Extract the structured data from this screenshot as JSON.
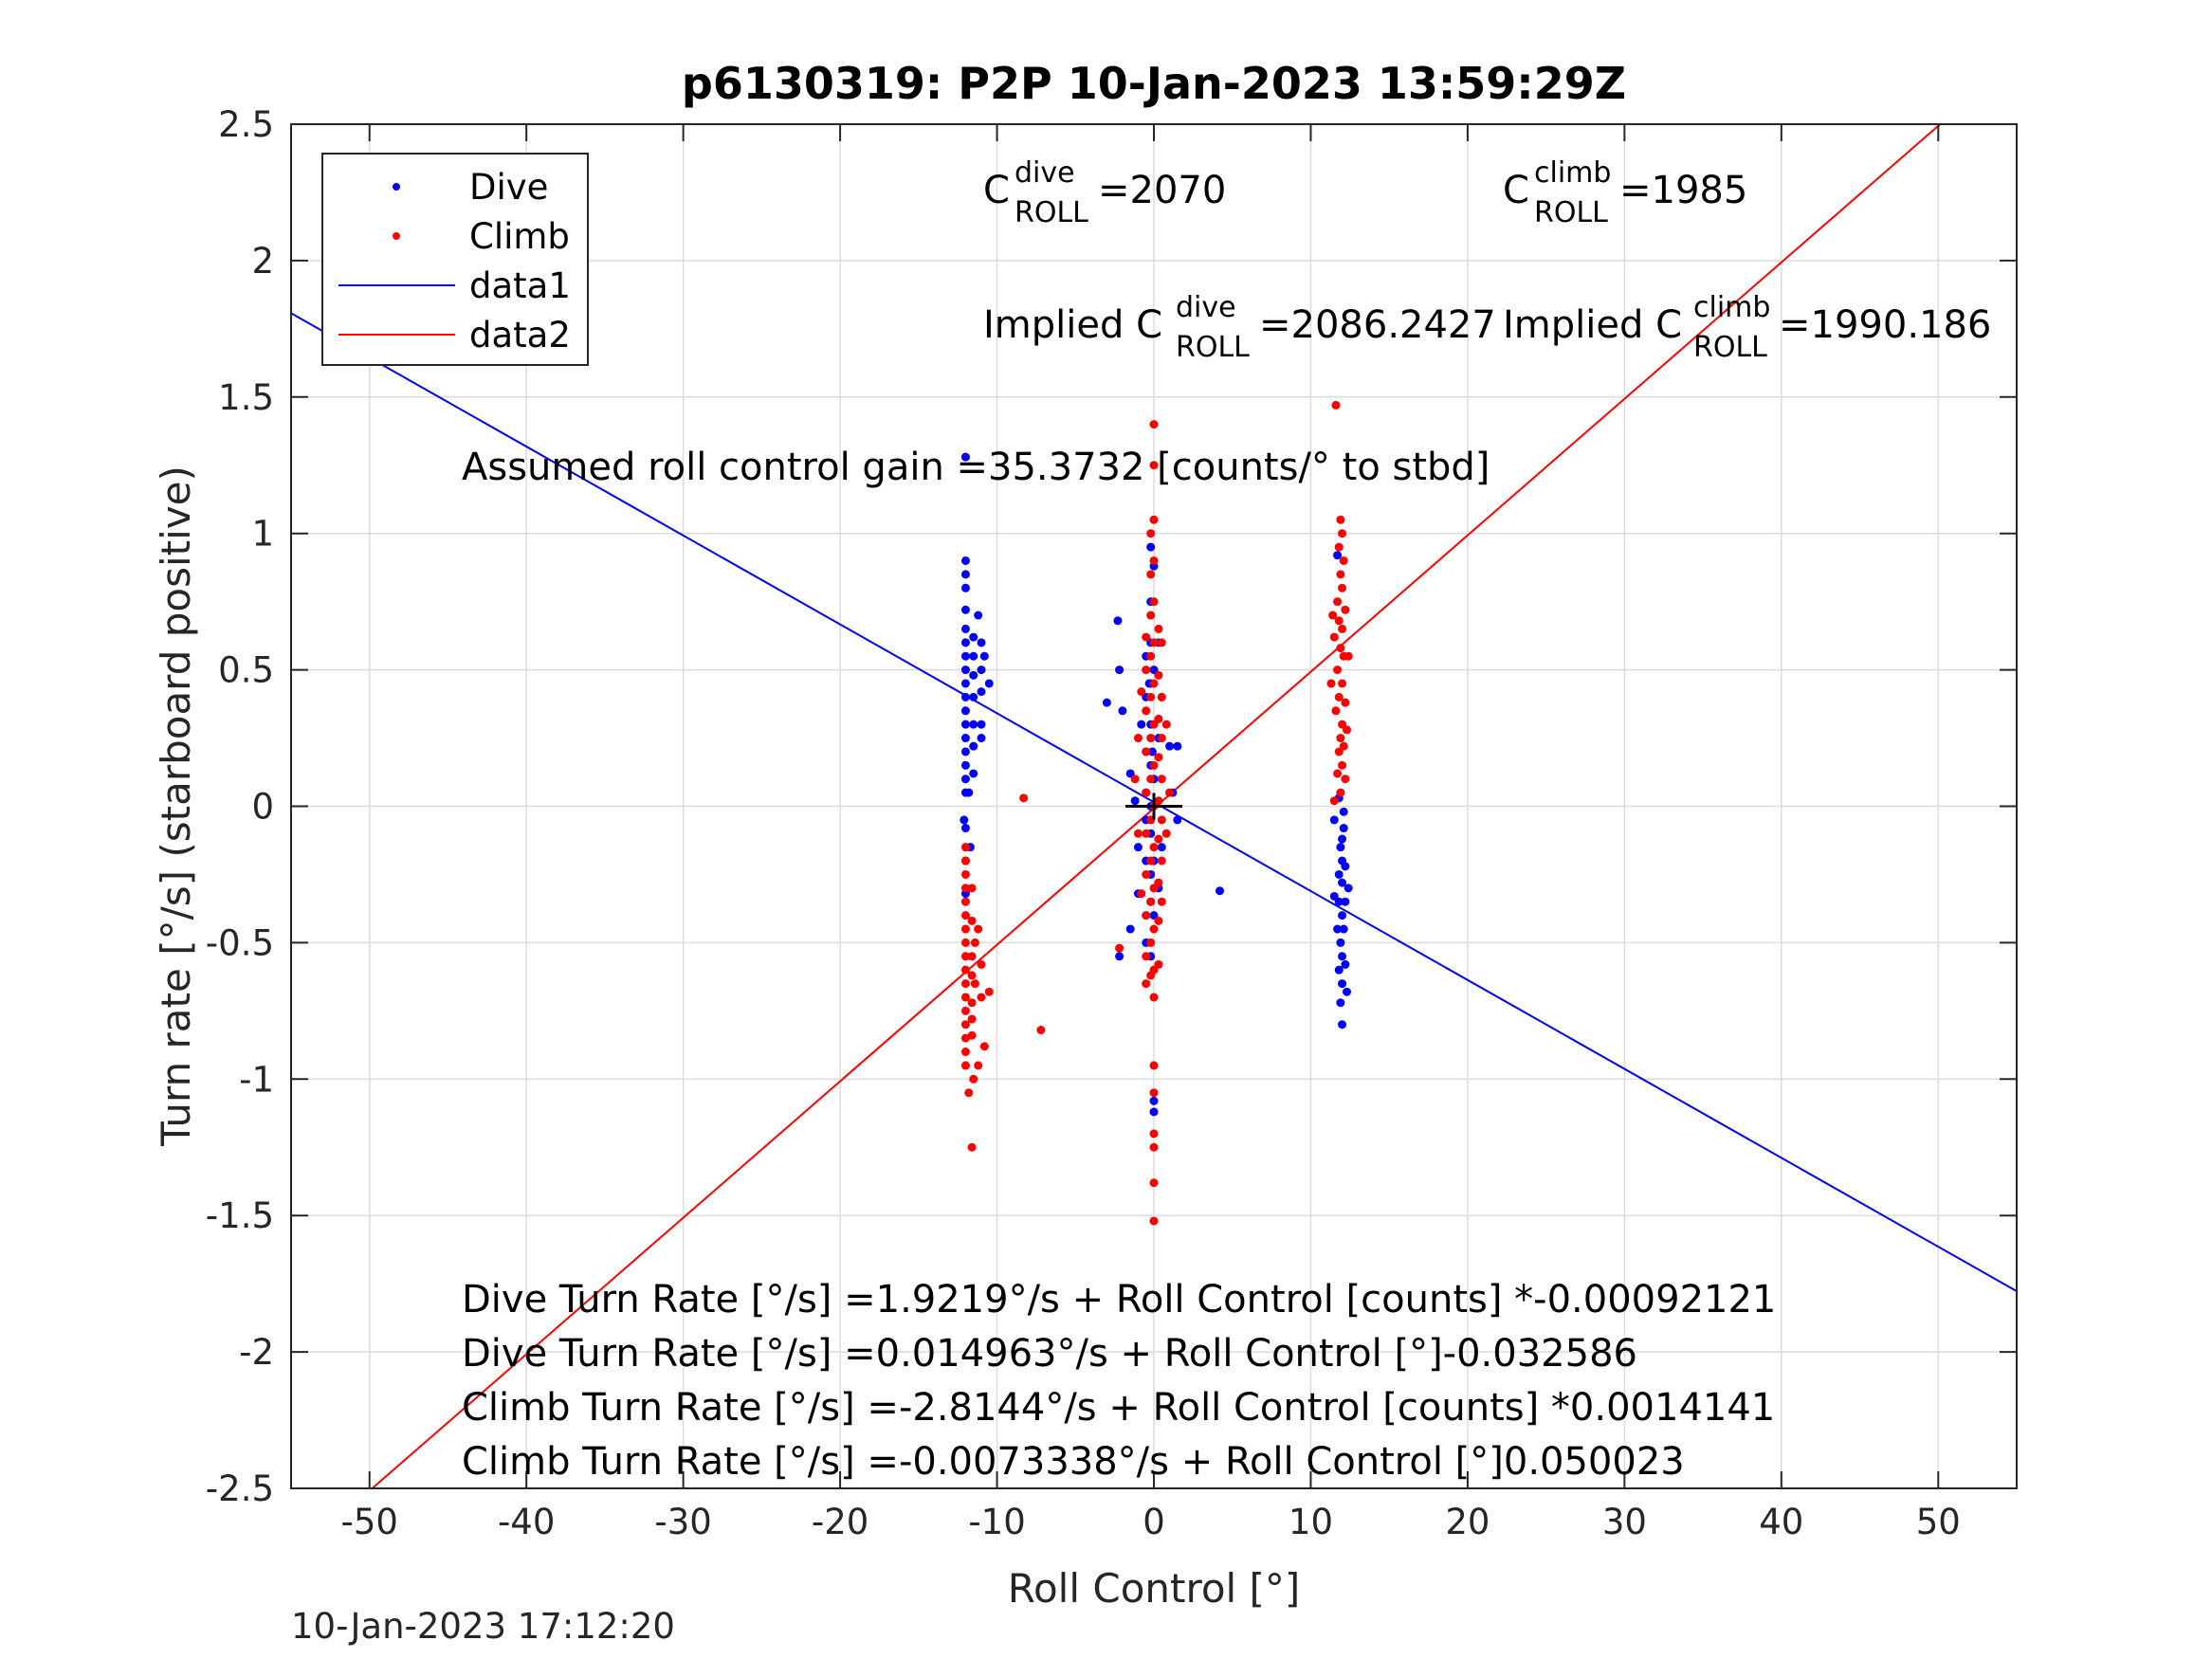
{
  "chart_data": {
    "type": "scatter",
    "title": "p6130319: P2P 10-Jan-2023 13:59:29Z",
    "xlabel": "Roll Control [°]",
    "ylabel": "Turn rate [°/s] (starboard positive)",
    "xlim": [
      -55,
      55
    ],
    "ylim": [
      -2.5,
      2.5
    ],
    "xticks": [
      -50,
      -40,
      -30,
      -20,
      -10,
      0,
      10,
      20,
      30,
      40,
      50
    ],
    "xtick_labels": [
      "-50",
      "-40",
      "-30",
      "-20",
      "-10",
      "0",
      "10",
      "20",
      "30",
      "40",
      "50"
    ],
    "yticks": [
      -2.5,
      -2,
      -1.5,
      -1,
      -0.5,
      0,
      0.5,
      1,
      1.5,
      2,
      2.5
    ],
    "ytick_labels": [
      "-2.5",
      "-2",
      "-1.5",
      "-1",
      "-0.5",
      "0",
      "0.5",
      "1",
      "1.5",
      "2",
      "2.5"
    ],
    "grid": true,
    "legend_position": "top-left",
    "timestamp": "10-Jan-2023 17:12:20",
    "colors": {
      "dive": "#0000ff",
      "climb": "#ff0000",
      "axes": "#262626",
      "grid": "#dcdcdc"
    },
    "series": [
      {
        "name": "Dive",
        "kind": "scatter",
        "color": "#0000ff",
        "points": [
          [
            -12,
            0.9
          ],
          [
            -12,
            0.85
          ],
          [
            -12,
            0.8
          ],
          [
            -12,
            0.72
          ],
          [
            -12,
            0.65
          ],
          [
            -12,
            0.6
          ],
          [
            -12,
            0.55
          ],
          [
            -12,
            0.5
          ],
          [
            -12,
            0.45
          ],
          [
            -12,
            0.4
          ],
          [
            -12,
            0.35
          ],
          [
            -12,
            0.3
          ],
          [
            -12,
            0.25
          ],
          [
            -12,
            0.2
          ],
          [
            -12,
            0.15
          ],
          [
            -12,
            0.1
          ],
          [
            -12,
            0.05
          ],
          [
            -12,
            -0.08
          ],
          [
            -12,
            -0.2
          ],
          [
            -12,
            -0.32
          ],
          [
            -12,
            1.28
          ],
          [
            -11.5,
            0.62
          ],
          [
            -11.5,
            0.55
          ],
          [
            -11.5,
            0.48
          ],
          [
            -11.5,
            0.4
          ],
          [
            -11.5,
            0.3
          ],
          [
            -11.5,
            0.22
          ],
          [
            -11.5,
            0.12
          ],
          [
            -11.2,
            0.7
          ],
          [
            -11,
            0.6
          ],
          [
            -11,
            0.5
          ],
          [
            -11,
            0.42
          ],
          [
            -11,
            0.3
          ],
          [
            -11,
            0.25
          ],
          [
            -10.5,
            0.45
          ],
          [
            -10.8,
            0.55
          ],
          [
            -11.8,
            0.05
          ],
          [
            -12.1,
            -0.05
          ],
          [
            -11.7,
            -0.15
          ],
          [
            -2.3,
            0.68
          ],
          [
            -2.2,
            0.5
          ],
          [
            -2,
            0.35
          ],
          [
            -3,
            0.38
          ],
          [
            -1.5,
            0.12
          ],
          [
            -1.2,
            0.02
          ],
          [
            -1,
            -0.15
          ],
          [
            -1,
            -0.32
          ],
          [
            -1.5,
            -0.45
          ],
          [
            -2.2,
            -0.55
          ],
          [
            -0.8,
            0.3
          ],
          [
            -0.5,
            0.55
          ],
          [
            -0.5,
            0.4
          ],
          [
            -0.5,
            0.2
          ],
          [
            -0.5,
            0.05
          ],
          [
            -0.5,
            -0.05
          ],
          [
            -0.5,
            -0.2
          ],
          [
            -0.5,
            -0.4
          ],
          [
            -0.5,
            -0.5
          ],
          [
            -0.2,
            0.95
          ],
          [
            -0.2,
            0.75
          ],
          [
            -0.2,
            0.6
          ],
          [
            -0.2,
            0.45
          ],
          [
            -0.2,
            0.3
          ],
          [
            -0.2,
            0.15
          ],
          [
            -0.2,
            0
          ],
          [
            -0.2,
            -0.1
          ],
          [
            -0.2,
            -0.25
          ],
          [
            -0.2,
            -0.35
          ],
          [
            -0.2,
            -0.55
          ],
          [
            0,
            0.88
          ],
          [
            0,
            0.5
          ],
          [
            0,
            0.1
          ],
          [
            0,
            -0.2
          ],
          [
            0,
            -0.4
          ],
          [
            0,
            -1.08
          ],
          [
            0,
            -1.12
          ],
          [
            0.3,
            0.6
          ],
          [
            0.3,
            0.25
          ],
          [
            0.3,
            -0.3
          ],
          [
            0.5,
            0.4
          ],
          [
            0.5,
            -0.15
          ],
          [
            1,
            0.22
          ],
          [
            1.2,
            0.05
          ],
          [
            1.5,
            0.22
          ],
          [
            1.5,
            -0.05
          ],
          [
            4.2,
            -0.31
          ],
          [
            -0.3,
            0.45
          ],
          [
            -0.1,
            0.2
          ],
          [
            11.7,
            0.92
          ],
          [
            11.8,
            0.03
          ],
          [
            11.5,
            -0.05
          ],
          [
            12.1,
            -0.08
          ],
          [
            12,
            -0.12
          ],
          [
            11.9,
            -0.15
          ],
          [
            12,
            -0.2
          ],
          [
            12.2,
            -0.22
          ],
          [
            11.8,
            -0.25
          ],
          [
            12,
            -0.28
          ],
          [
            11.5,
            -0.33
          ],
          [
            11.8,
            -0.35
          ],
          [
            12.2,
            -0.35
          ],
          [
            12,
            -0.4
          ],
          [
            11.7,
            -0.45
          ],
          [
            12.1,
            -0.45
          ],
          [
            11.9,
            -0.5
          ],
          [
            12,
            -0.55
          ],
          [
            12.2,
            -0.58
          ],
          [
            11.8,
            -0.6
          ],
          [
            12,
            -0.65
          ],
          [
            12.3,
            -0.68
          ],
          [
            11.9,
            -0.72
          ],
          [
            12,
            -0.8
          ],
          [
            12.4,
            -0.3
          ],
          [
            12.1,
            -0.02
          ]
        ]
      },
      {
        "name": "Climb",
        "kind": "scatter",
        "color": "#ff0000",
        "points": [
          [
            -12,
            -0.15
          ],
          [
            -12,
            -0.2
          ],
          [
            -12,
            -0.25
          ],
          [
            -12,
            -0.3
          ],
          [
            -12,
            -0.35
          ],
          [
            -12,
            -0.4
          ],
          [
            -12,
            -0.45
          ],
          [
            -12,
            -0.5
          ],
          [
            -12,
            -0.55
          ],
          [
            -12,
            -0.6
          ],
          [
            -12,
            -0.65
          ],
          [
            -12,
            -0.7
          ],
          [
            -12,
            -0.75
          ],
          [
            -12,
            -0.8
          ],
          [
            -12,
            -0.85
          ],
          [
            -12,
            -0.9
          ],
          [
            -12,
            -0.95
          ],
          [
            -11.6,
            -0.3
          ],
          [
            -11.6,
            -0.42
          ],
          [
            -11.6,
            -0.55
          ],
          [
            -11.6,
            -0.62
          ],
          [
            -11.6,
            -0.72
          ],
          [
            -11.6,
            -0.78
          ],
          [
            -11.6,
            -0.84
          ],
          [
            -11.4,
            -0.5
          ],
          [
            -11.4,
            -0.65
          ],
          [
            -11.2,
            -0.95
          ],
          [
            -11.5,
            -1.0
          ],
          [
            -11.8,
            -1.05
          ],
          [
            -11.6,
            -1.25
          ],
          [
            -11.2,
            -0.45
          ],
          [
            -11,
            -0.58
          ],
          [
            -11,
            -0.7
          ],
          [
            -10.8,
            -0.88
          ],
          [
            -10.5,
            -0.68
          ],
          [
            -8.3,
            0.03
          ],
          [
            -7.2,
            -0.82
          ],
          [
            -0.5,
            0.62
          ],
          [
            -0.5,
            0.5
          ],
          [
            -0.5,
            0.35
          ],
          [
            -0.5,
            0.2
          ],
          [
            -0.5,
            0.05
          ],
          [
            -0.5,
            -0.1
          ],
          [
            -0.5,
            -0.25
          ],
          [
            -0.5,
            -0.4
          ],
          [
            -0.5,
            -0.55
          ],
          [
            -0.5,
            -0.65
          ],
          [
            -0.2,
            1.0
          ],
          [
            -0.2,
            0.85
          ],
          [
            -0.2,
            0.7
          ],
          [
            -0.2,
            0.55
          ],
          [
            -0.2,
            0.4
          ],
          [
            -0.2,
            0.25
          ],
          [
            -0.2,
            0.1
          ],
          [
            -0.2,
            -0.05
          ],
          [
            -0.2,
            -0.2
          ],
          [
            -0.2,
            -0.35
          ],
          [
            -0.2,
            -0.5
          ],
          [
            -0.2,
            -0.62
          ],
          [
            0,
            1.4
          ],
          [
            0,
            1.25
          ],
          [
            0,
            1.05
          ],
          [
            0,
            0.9
          ],
          [
            0,
            0.75
          ],
          [
            0,
            0.6
          ],
          [
            0,
            0.45
          ],
          [
            0,
            0.3
          ],
          [
            0,
            0.15
          ],
          [
            0,
            0
          ],
          [
            0,
            -0.15
          ],
          [
            0,
            -0.3
          ],
          [
            0,
            -0.45
          ],
          [
            0,
            -0.6
          ],
          [
            0,
            -0.7
          ],
          [
            0,
            -0.95
          ],
          [
            0,
            -1.05
          ],
          [
            0,
            -1.2
          ],
          [
            0,
            -1.25
          ],
          [
            0,
            -1.38
          ],
          [
            0,
            -1.52
          ],
          [
            0.3,
            0.65
          ],
          [
            0.3,
            0.48
          ],
          [
            0.3,
            0.32
          ],
          [
            0.3,
            0.18
          ],
          [
            0.3,
            0.02
          ],
          [
            0.3,
            -0.12
          ],
          [
            0.3,
            -0.28
          ],
          [
            0.3,
            -0.42
          ],
          [
            0.3,
            -0.58
          ],
          [
            0.5,
            0.6
          ],
          [
            0.5,
            0.4
          ],
          [
            0.5,
            0.25
          ],
          [
            0.5,
            0.1
          ],
          [
            0.5,
            -0.05
          ],
          [
            0.5,
            -0.2
          ],
          [
            0.5,
            -0.35
          ],
          [
            -1,
            0.25
          ],
          [
            -1.2,
            0.1
          ],
          [
            -1,
            -0.1
          ],
          [
            -2.2,
            -0.52
          ],
          [
            0.8,
            0.3
          ],
          [
            0.8,
            -0.1
          ],
          [
            1,
            0.05
          ],
          [
            -0.8,
            0.42
          ],
          [
            -0.8,
            -0.32
          ],
          [
            11.6,
            1.47
          ],
          [
            11.9,
            1.05
          ],
          [
            12,
            1.0
          ],
          [
            11.8,
            0.95
          ],
          [
            12.1,
            0.9
          ],
          [
            11.9,
            0.85
          ],
          [
            12,
            0.8
          ],
          [
            11.7,
            0.75
          ],
          [
            12.2,
            0.72
          ],
          [
            11.8,
            0.68
          ],
          [
            12,
            0.65
          ],
          [
            11.5,
            0.62
          ],
          [
            11.9,
            0.58
          ],
          [
            12.1,
            0.55
          ],
          [
            11.7,
            0.5
          ],
          [
            12,
            0.45
          ],
          [
            11.8,
            0.4
          ],
          [
            12.2,
            0.38
          ],
          [
            11.6,
            0.35
          ],
          [
            12,
            0.3
          ],
          [
            11.9,
            0.25
          ],
          [
            12.1,
            0.22
          ],
          [
            11.8,
            0.2
          ],
          [
            12,
            0.15
          ],
          [
            11.7,
            0.12
          ],
          [
            12.2,
            0.1
          ],
          [
            11.9,
            0.05
          ],
          [
            11.5,
            0.02
          ],
          [
            12.3,
            0.28
          ],
          [
            11.4,
            0.7
          ],
          [
            11.3,
            0.45
          ],
          [
            12.4,
            0.55
          ]
        ]
      },
      {
        "name": "data1",
        "kind": "line",
        "color": "#0000ff",
        "intercept": 0.014963,
        "slope": -0.032586
      },
      {
        "name": "data2",
        "kind": "line",
        "color": "#ff0000",
        "intercept": -0.0073338,
        "slope": 0.050023
      }
    ],
    "annotations": {
      "c_dive": {
        "base": "C",
        "sup": "dive",
        "sub": "ROLL",
        "value": " =2070"
      },
      "c_climb": {
        "base": "C",
        "sup": "climb",
        "sub": "ROLL",
        "value": " =1985"
      },
      "implied_dive": {
        "prefix": "Implied C",
        "sup": "dive",
        "sub": "ROLL",
        "value": " =2086.2427"
      },
      "implied_climb": {
        "prefix": "Implied C",
        "sup": "climb",
        "sub": "ROLL",
        "value": " =1990.186"
      },
      "gain": "Assumed roll control gain =35.3732 [counts/° to stbd]",
      "equations": [
        "Dive Turn Rate [°/s] =1.9219°/s + Roll Control [counts] *-0.00092121",
        "Dive Turn Rate [°/s] =0.014963°/s + Roll Control [°]-0.032586",
        "Climb Turn Rate [°/s] =-2.8144°/s + Roll Control [counts] *0.0014141",
        "Climb Turn Rate [°/s] =-0.0073338°/s + Roll Control [°]0.050023"
      ]
    }
  }
}
